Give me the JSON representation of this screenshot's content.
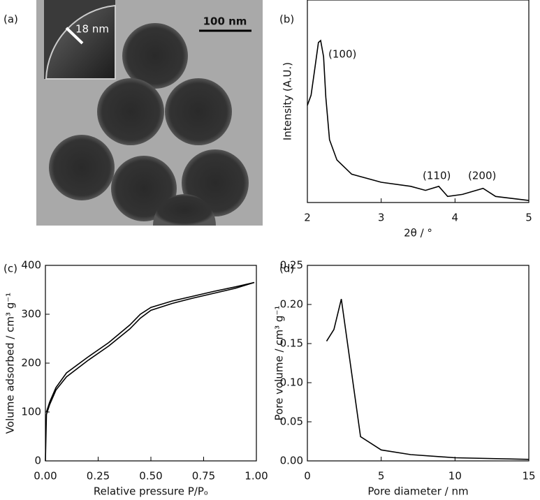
{
  "image_panel": {
    "label": "(a)",
    "scale_bar": "100 nm",
    "inset_label": "18 nm"
  },
  "chart_data": [
    {
      "type": "line",
      "panel_label": "(b)",
      "x_label": "2θ / °",
      "y_label": "Intensity (A.U.)",
      "x": [
        2.0,
        2.05,
        2.1,
        2.15,
        2.18,
        2.22,
        2.25,
        2.3,
        2.4,
        2.6,
        3.0,
        3.4,
        3.6,
        3.78,
        3.9,
        4.1,
        4.38,
        4.55,
        5.0
      ],
      "values": [
        0.48,
        0.53,
        0.66,
        0.79,
        0.8,
        0.72,
        0.52,
        0.31,
        0.21,
        0.14,
        0.1,
        0.08,
        0.06,
        0.08,
        0.03,
        0.04,
        0.07,
        0.03,
        0.01
      ],
      "color": "#000000",
      "xlim": [
        2,
        5
      ],
      "xticks": [
        2,
        3,
        4,
        5
      ],
      "ylim": [
        0,
        1
      ],
      "annotations": [
        "(100)",
        "(110)",
        "(200)"
      ]
    },
    {
      "type": "line",
      "panel_label": "(c)",
      "x_label": "Relative pressure P/Pₒ",
      "y_label": "Volume adsorbed / cm³ g⁻¹",
      "series": [
        {
          "color": "#000000",
          "x": [
            0,
            0.005,
            0.02,
            0.05,
            0.1,
            0.2,
            0.3,
            0.4,
            0.45,
            0.5,
            0.6,
            0.7,
            0.8,
            0.9,
            0.99
          ],
          "values": [
            0,
            95,
            115,
            145,
            172,
            205,
            235,
            270,
            292,
            308,
            322,
            333,
            343,
            353,
            365
          ]
        },
        {
          "color": "#000000",
          "x": [
            0.005,
            0.02,
            0.05,
            0.1,
            0.2,
            0.3,
            0.4,
            0.45,
            0.5,
            0.6,
            0.7,
            0.8,
            0.9,
            0.99
          ],
          "values": [
            100,
            120,
            150,
            180,
            212,
            242,
            278,
            300,
            314,
            327,
            337,
            347,
            356,
            365
          ]
        }
      ],
      "xlim": [
        0,
        1
      ],
      "xticks": [
        {
          "value": 0,
          "label": "0.00"
        },
        {
          "value": 0.25,
          "label": "0.25"
        },
        {
          "value": 0.5,
          "label": "0.50"
        },
        {
          "value": 0.75,
          "label": "0.75"
        },
        {
          "value": 1,
          "label": "1.00"
        }
      ],
      "ylim": [
        0,
        400
      ],
      "yticks": [
        0,
        100,
        200,
        300,
        400
      ]
    },
    {
      "type": "line",
      "panel_label": "(d)",
      "x_label": "Pore diameter / nm",
      "y_label": "Pore volume / cm³ g⁻¹",
      "x": [
        1.3,
        1.8,
        2.3,
        3.6,
        5.0,
        7.0,
        10,
        15
      ],
      "values": [
        0.153,
        0.168,
        0.207,
        0.031,
        0.014,
        0.008,
        0.004,
        0.002
      ],
      "color": "#000000",
      "xlim": [
        0,
        15
      ],
      "xticks": [
        0,
        5,
        10,
        15
      ],
      "ylim": [
        0,
        0.25
      ],
      "yticks": [
        {
          "value": 0,
          "label": "0.00"
        },
        {
          "value": 0.05,
          "label": "0.05"
        },
        {
          "value": 0.1,
          "label": "0.10"
        },
        {
          "value": 0.15,
          "label": "0.15"
        },
        {
          "value": 0.2,
          "label": "0.20"
        },
        {
          "value": 0.25,
          "label": "0.25"
        }
      ]
    }
  ]
}
